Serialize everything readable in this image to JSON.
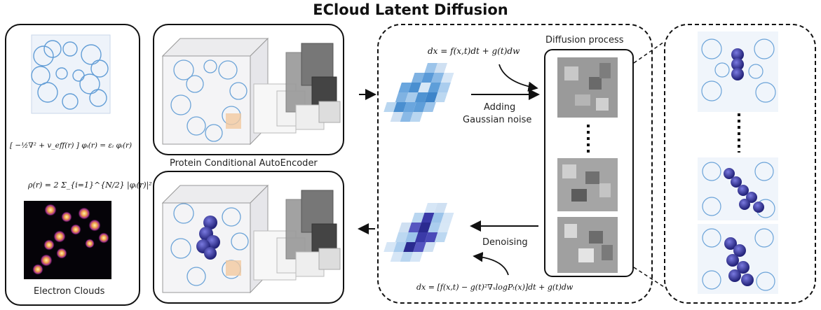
{
  "title": "ECloud Latent Diffusion",
  "left_panel": {
    "schrodinger_eq": "[ −½∇² + v_eff(r) ] φᵢ(r) = εᵢ φᵢ(r)",
    "density_eq": "ρ(r) = 2 Σ_{i=1}^{N/2} |φᵢ(r)|²",
    "label": "Electron Clouds"
  },
  "autoencoder": {
    "label": "Protein Conditional AutoEncoder"
  },
  "diffusion": {
    "process_label": "Diffusion process",
    "forward_sde": "dx = f(x,t)dt + g(t)dw",
    "reverse_sde": "dx = [f(x,t) − g(t)²∇ₓlogPₜ(x)]dt + g(t)dw",
    "noise_label_line1": "Adding",
    "noise_label_line2": "Gaussian noise",
    "denoise_label": "Denoising"
  },
  "colors": {
    "cloud_blue": "#4a8fd0",
    "ligand_purple": "#3a3aa8",
    "border": "#111111"
  }
}
